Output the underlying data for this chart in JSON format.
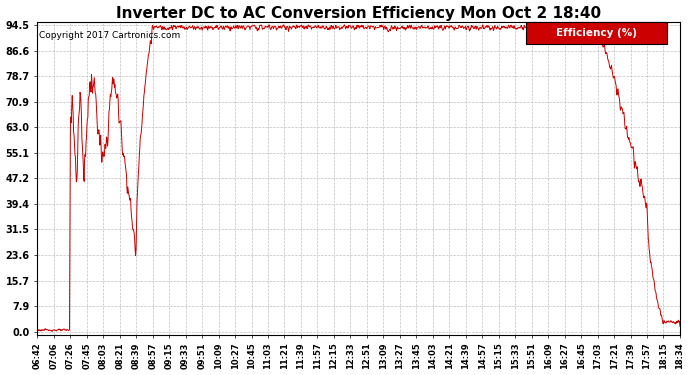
{
  "title": "Inverter DC to AC Conversion Efficiency Mon Oct 2 18:40",
  "copyright": "Copyright 2017 Cartronics.com",
  "legend_label": "Efficiency (%)",
  "ylabel_ticks": [
    0.0,
    7.9,
    15.7,
    23.6,
    31.5,
    39.4,
    47.2,
    55.1,
    63.0,
    70.9,
    78.7,
    86.6,
    94.5
  ],
  "ytick_labels": [
    "0.0",
    "7.9",
    "15.7",
    "23.6",
    "31.5",
    "39.4",
    "47.2",
    "55.1",
    "63.0",
    "70.9",
    "78.7",
    "86.6",
    "94.5"
  ],
  "xtick_labels": [
    "06:42",
    "07:06",
    "07:26",
    "07:45",
    "08:03",
    "08:21",
    "08:39",
    "08:57",
    "09:15",
    "09:33",
    "09:51",
    "10:09",
    "10:27",
    "10:45",
    "11:03",
    "11:21",
    "11:39",
    "11:57",
    "12:15",
    "12:33",
    "12:51",
    "13:09",
    "13:27",
    "13:45",
    "14:03",
    "14:21",
    "14:39",
    "14:57",
    "15:15",
    "15:33",
    "15:51",
    "16:09",
    "16:27",
    "16:45",
    "17:03",
    "17:21",
    "17:39",
    "17:57",
    "18:15",
    "18:34"
  ],
  "line_color": "#cc0000",
  "background_color": "#ffffff",
  "plot_bg_color": "#ffffff",
  "grid_color": "#c0c0c0",
  "title_fontsize": 11,
  "legend_bg_color": "#cc0000",
  "legend_text_color": "#ffffff",
  "ymin": 0.0,
  "ymax": 94.5,
  "figwidth": 6.9,
  "figheight": 3.75,
  "dpi": 100
}
